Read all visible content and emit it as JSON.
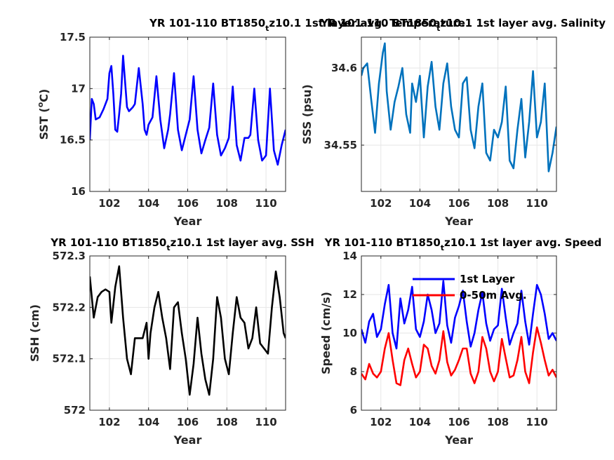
{
  "chart_data": [
    {
      "type": "line",
      "title_main": "YR 101-110 BT1850",
      "title_sub": "t",
      "title_rest": "z10.1 1st layer avg. Temperature",
      "xlabel": "Year",
      "ylabel_main": "SST (",
      "ylabel_sup": "o",
      "ylabel_rest": "C)",
      "xlim": [
        101,
        111
      ],
      "ylim": [
        16,
        17.5
      ],
      "xticks": [
        "102",
        "104",
        "106",
        "108",
        "110"
      ],
      "yticks": [
        "16",
        "16.5",
        "17",
        "17.5"
      ],
      "grid": true,
      "series": [
        {
          "color": "#0000ff",
          "x": [
            101.0,
            101.1,
            101.2,
            101.3,
            101.5,
            101.7,
            101.9,
            102.0,
            102.1,
            102.2,
            102.3,
            102.4,
            102.5,
            102.6,
            102.7,
            102.9,
            103.0,
            103.1,
            103.2,
            103.3,
            103.5,
            103.7,
            103.8,
            103.9,
            104.0,
            104.2,
            104.4,
            104.6,
            104.8,
            105.0,
            105.1,
            105.3,
            105.5,
            105.7,
            105.9,
            106.1,
            106.3,
            106.5,
            106.7,
            106.9,
            107.1,
            107.3,
            107.5,
            107.7,
            107.9,
            108.1,
            108.3,
            108.5,
            108.7,
            108.9,
            109.1,
            109.2,
            109.4,
            109.6,
            109.8,
            110.0,
            110.2,
            110.4,
            110.6,
            110.8,
            111.0
          ],
          "y": [
            16.5,
            16.9,
            16.85,
            16.7,
            16.72,
            16.8,
            16.9,
            17.15,
            17.22,
            16.95,
            16.6,
            16.58,
            16.75,
            16.95,
            17.32,
            16.82,
            16.78,
            16.8,
            16.82,
            16.85,
            17.2,
            16.85,
            16.6,
            16.55,
            16.65,
            16.72,
            17.12,
            16.7,
            16.42,
            16.6,
            16.75,
            17.15,
            16.6,
            16.4,
            16.55,
            16.7,
            17.12,
            16.6,
            16.37,
            16.5,
            16.62,
            17.05,
            16.55,
            16.35,
            16.42,
            16.52,
            17.02,
            16.45,
            16.3,
            16.52,
            16.52,
            16.55,
            17.0,
            16.5,
            16.3,
            16.35,
            17.0,
            16.4,
            16.26,
            16.45,
            16.6
          ]
        }
      ]
    },
    {
      "type": "line",
      "title_main": "YR 101-110 BT1850",
      "title_sub": "t",
      "title_rest": "z10.1 1st layer avg. Salinity",
      "xlabel": "Year",
      "ylabel": "SSS (psu)",
      "xlim": [
        101,
        111
      ],
      "ylim": [
        34.52,
        34.62
      ],
      "xticks": [
        "102",
        "104",
        "106",
        "108",
        "110"
      ],
      "yticks": [
        "34.55",
        "34.6"
      ],
      "ytick_values": [
        34.55,
        34.6
      ],
      "grid": true,
      "series": [
        {
          "color": "#0072bd",
          "x": [
            101.0,
            101.1,
            101.3,
            101.5,
            101.7,
            101.9,
            102.1,
            102.2,
            102.3,
            102.5,
            102.7,
            102.9,
            103.1,
            103.3,
            103.5,
            103.6,
            103.8,
            104.0,
            104.2,
            104.4,
            104.6,
            104.8,
            105.0,
            105.2,
            105.4,
            105.6,
            105.8,
            106.0,
            106.2,
            106.4,
            106.6,
            106.8,
            107.0,
            107.2,
            107.4,
            107.6,
            107.8,
            108.0,
            108.2,
            108.4,
            108.6,
            108.8,
            109.0,
            109.2,
            109.4,
            109.6,
            109.8,
            110.0,
            110.2,
            110.4,
            110.6,
            110.8,
            111.0
          ],
          "y": [
            34.595,
            34.6,
            34.603,
            34.58,
            34.558,
            34.59,
            34.61,
            34.616,
            34.585,
            34.56,
            34.578,
            34.588,
            34.6,
            34.57,
            34.558,
            34.59,
            34.578,
            34.595,
            34.555,
            34.588,
            34.604,
            34.575,
            34.56,
            34.59,
            34.603,
            34.575,
            34.56,
            34.555,
            34.59,
            34.594,
            34.56,
            34.548,
            34.575,
            34.59,
            34.545,
            34.54,
            34.56,
            34.555,
            34.565,
            34.588,
            34.54,
            34.535,
            34.56,
            34.58,
            34.542,
            34.565,
            34.598,
            34.555,
            34.565,
            34.59,
            34.533,
            34.545,
            34.562
          ]
        }
      ]
    },
    {
      "type": "line",
      "title_main": "YR 101-110 BT1850",
      "title_sub": "t",
      "title_rest": "z10.1 1st layer avg. SSH",
      "xlabel": "Year",
      "ylabel": "SSH (cm)",
      "xlim": [
        101,
        111
      ],
      "ylim": [
        572,
        572.3
      ],
      "xticks": [
        "102",
        "104",
        "106",
        "108",
        "110"
      ],
      "yticks": [
        "572",
        "572.1",
        "572.2",
        "572.3"
      ],
      "ytick_values": [
        572,
        572.1,
        572.2,
        572.3
      ],
      "grid": true,
      "series": [
        {
          "color": "#000000",
          "x": [
            101.0,
            101.2,
            101.4,
            101.6,
            101.8,
            102.0,
            102.1,
            102.3,
            102.5,
            102.7,
            102.9,
            103.1,
            103.3,
            103.5,
            103.7,
            103.9,
            104.0,
            104.1,
            104.3,
            104.5,
            104.7,
            104.9,
            105.1,
            105.3,
            105.5,
            105.7,
            105.9,
            106.1,
            106.3,
            106.5,
            106.7,
            106.9,
            107.1,
            107.3,
            107.5,
            107.7,
            107.9,
            108.1,
            108.3,
            108.5,
            108.7,
            108.9,
            109.1,
            109.3,
            109.5,
            109.7,
            109.9,
            110.1,
            110.3,
            110.5,
            110.7,
            110.9,
            111.0
          ],
          "y": [
            572.26,
            572.18,
            572.22,
            572.23,
            572.235,
            572.23,
            572.17,
            572.24,
            572.28,
            572.18,
            572.1,
            572.07,
            572.14,
            572.14,
            572.14,
            572.17,
            572.1,
            572.15,
            572.2,
            572.23,
            572.18,
            572.14,
            572.08,
            572.2,
            572.21,
            572.15,
            572.1,
            572.03,
            572.09,
            572.18,
            572.11,
            572.06,
            572.03,
            572.1,
            572.22,
            572.18,
            572.1,
            572.07,
            572.15,
            572.22,
            572.18,
            572.17,
            572.12,
            572.14,
            572.2,
            572.13,
            572.12,
            572.11,
            572.2,
            572.27,
            572.22,
            572.15,
            572.14
          ]
        }
      ]
    },
    {
      "type": "line",
      "title_main": "YR 101-110 BT1850",
      "title_sub": "t",
      "title_rest": "z10.1 1st layer avg. Speed",
      "xlabel": "Year",
      "ylabel": "Speed (cm/s)",
      "xlim": [
        101,
        111
      ],
      "ylim": [
        6,
        14
      ],
      "xticks": [
        "102",
        "104",
        "106",
        "108",
        "110"
      ],
      "yticks": [
        "6",
        "8",
        "10",
        "12",
        "14"
      ],
      "ytick_values": [
        6,
        8,
        10,
        12,
        14
      ],
      "grid": true,
      "legend": "top-right",
      "series": [
        {
          "name": "1st Layer",
          "color": "#0000ff",
          "x": [
            101.0,
            101.2,
            101.4,
            101.6,
            101.8,
            102.0,
            102.2,
            102.4,
            102.6,
            102.8,
            103.0,
            103.2,
            103.4,
            103.6,
            103.8,
            104.0,
            104.2,
            104.4,
            104.6,
            104.8,
            105.0,
            105.2,
            105.4,
            105.6,
            105.8,
            106.0,
            106.2,
            106.4,
            106.6,
            106.8,
            107.0,
            107.2,
            107.4,
            107.6,
            107.8,
            108.0,
            108.2,
            108.4,
            108.6,
            108.8,
            109.0,
            109.2,
            109.4,
            109.6,
            109.8,
            110.0,
            110.2,
            110.4,
            110.6,
            110.8,
            111.0
          ],
          "y": [
            10.2,
            9.5,
            10.6,
            11.0,
            9.8,
            10.2,
            11.5,
            12.5,
            10.0,
            9.2,
            11.8,
            10.5,
            11.2,
            12.4,
            10.2,
            9.8,
            10.6,
            12.0,
            11.2,
            10.0,
            10.5,
            12.7,
            10.4,
            9.5,
            10.8,
            11.4,
            12.2,
            10.6,
            9.3,
            10.0,
            11.2,
            12.1,
            10.5,
            9.6,
            10.2,
            10.4,
            12.3,
            10.8,
            9.4,
            10.0,
            10.5,
            12.2,
            10.6,
            9.4,
            11.0,
            12.5,
            12.0,
            11.0,
            9.7,
            10.0,
            9.6
          ]
        },
        {
          "name": "0-50m Avg.",
          "color": "#ff0000",
          "x": [
            101.0,
            101.2,
            101.4,
            101.6,
            101.8,
            102.0,
            102.2,
            102.4,
            102.6,
            102.8,
            103.0,
            103.2,
            103.4,
            103.6,
            103.8,
            104.0,
            104.2,
            104.4,
            104.6,
            104.8,
            105.0,
            105.2,
            105.4,
            105.6,
            105.8,
            106.0,
            106.2,
            106.4,
            106.6,
            106.8,
            107.0,
            107.2,
            107.4,
            107.6,
            107.8,
            108.0,
            108.2,
            108.4,
            108.6,
            108.8,
            109.0,
            109.2,
            109.4,
            109.6,
            109.8,
            110.0,
            110.2,
            110.4,
            110.6,
            110.8,
            111.0
          ],
          "y": [
            7.9,
            7.6,
            8.4,
            7.9,
            7.7,
            8.0,
            9.2,
            10.0,
            8.6,
            7.4,
            7.3,
            8.6,
            9.2,
            8.4,
            7.7,
            8.0,
            9.4,
            9.2,
            8.3,
            7.9,
            8.6,
            10.1,
            8.5,
            7.8,
            8.1,
            8.6,
            9.2,
            9.2,
            7.9,
            7.4,
            8.0,
            9.8,
            9.2,
            8.0,
            7.5,
            8.0,
            9.7,
            8.7,
            7.7,
            7.8,
            8.6,
            9.8,
            8.0,
            7.4,
            9.0,
            10.3,
            9.5,
            8.6,
            7.8,
            8.1,
            7.7
          ]
        }
      ]
    }
  ]
}
